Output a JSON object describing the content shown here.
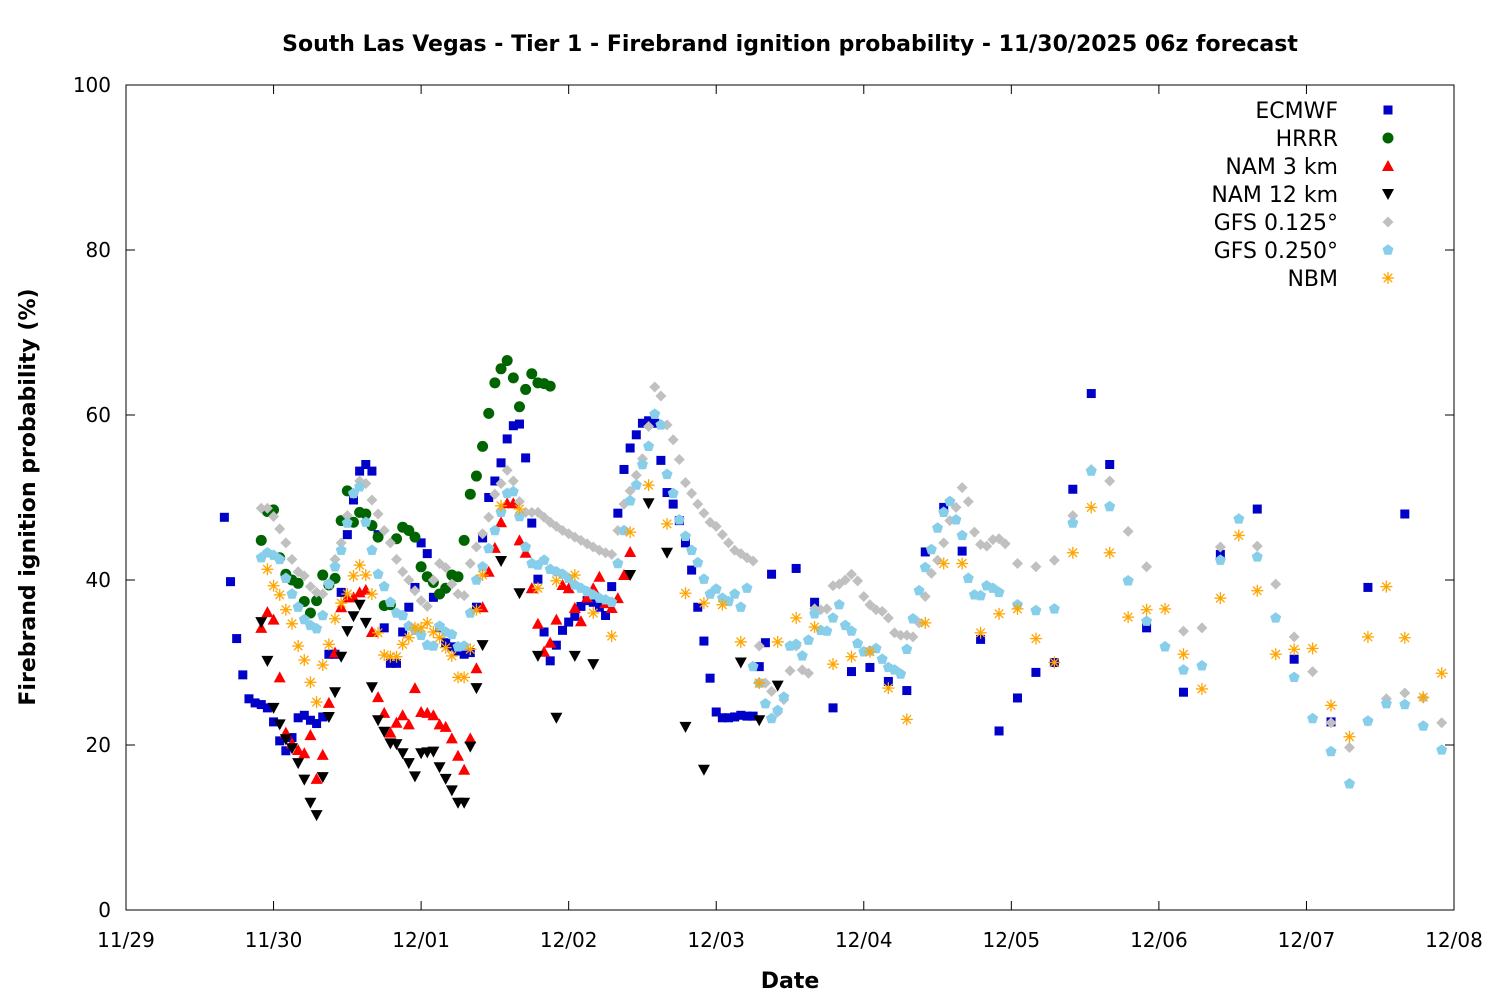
{
  "chart_data": {
    "type": "scatter",
    "title": "South Las Vegas - Tier 1 - Firebrand ignition probability - 11/30/2025 06z forecast",
    "xlabel": "Date",
    "ylabel": "Firebrand ignition probability (%)",
    "x_units": "hours since 11/29 00:00",
    "xlim": [
      0,
      216
    ],
    "ylim": [
      0,
      100
    ],
    "x_ticks": [
      {
        "value": 0,
        "label": "11/29"
      },
      {
        "value": 24,
        "label": "11/30"
      },
      {
        "value": 48,
        "label": "12/01"
      },
      {
        "value": 72,
        "label": "12/02"
      },
      {
        "value": 96,
        "label": "12/03"
      },
      {
        "value": 120,
        "label": "12/04"
      },
      {
        "value": 144,
        "label": "12/05"
      },
      {
        "value": 168,
        "label": "12/06"
      },
      {
        "value": 192,
        "label": "12/07"
      },
      {
        "value": 216,
        "label": "12/08"
      }
    ],
    "y_ticks": [
      {
        "value": 0,
        "label": "0"
      },
      {
        "value": 20,
        "label": "20"
      },
      {
        "value": 40,
        "label": "40"
      },
      {
        "value": 60,
        "label": "60"
      },
      {
        "value": 80,
        "label": "80"
      },
      {
        "value": 100,
        "label": "100"
      }
    ],
    "grid": false,
    "legend_position": "top-right",
    "series": [
      {
        "name": "ECMWF",
        "color": "#0000c8",
        "marker": "square",
        "segments": [
          {
            "start": 16,
            "step": 1,
            "values": [
              47.6,
              39.8,
              32.9,
              28.5,
              25.6,
              25.1,
              24.9,
              24.5,
              22.8,
              20.5,
              19.3,
              20.9,
              23.3,
              23.6,
              23.0,
              22.6,
              23.4,
              31,
              31,
              38.5,
              45.5,
              49.7,
              53.2,
              54,
              53.2,
              45.5,
              34.2,
              29.9,
              29.9,
              33.7,
              36.7,
              39.1,
              44.5,
              43.2,
              37.9,
              34.2,
              32.4,
              31.9,
              31.4,
              31.0,
              31.2,
              36.7,
              45.1,
              50,
              52,
              54.2,
              57.1,
              58.7,
              58.9,
              54.8,
              46.9,
              40.1,
              33.7,
              30.2,
              32.1,
              33.9,
              34.9,
              35.6,
              36.8,
              37.5,
              37.3,
              36.7,
              35.7,
              39.2,
              48.1,
              53.4,
              56,
              57.6,
              59,
              59.3,
              59,
              54.5,
              50.6,
              49.2,
              47.2,
              44.5,
              41.2,
              36.7,
              32.6,
              28.1,
              24,
              23.3,
              23.3,
              23.4,
              23.6,
              23.5,
              23.5,
              29.5,
              32.4,
              40.7
            ]
          },
          {
            "start": 109,
            "step": 3,
            "values": [
              41.4,
              37.3,
              24.5,
              28.9,
              29.4,
              27.7,
              26.6,
              43.4,
              48.8,
              43.5,
              32.8,
              21.7,
              25.7,
              28.8,
              30.0,
              51.0,
              62.6,
              54.0
            ]
          },
          {
            "start": 166,
            "step": 6,
            "values": [
              34.2,
              26.4,
              43.1,
              48.6,
              30.4,
              22.8,
              39.1,
              48.0
            ]
          }
        ]
      },
      {
        "name": "HRRR",
        "color": "#006400",
        "marker": "circle",
        "segments": [
          {
            "start": 22,
            "step": 1,
            "values": [
              44.8,
              48.3,
              48.5,
              42.7,
              40.7,
              40,
              39.6,
              37.4,
              36,
              37.5,
              40.6,
              39.4,
              40.2,
              47.2,
              50.8,
              47,
              48.2,
              48,
              46.6,
              45.2,
              36.9,
              37,
              45,
              46.4,
              46,
              45.2,
              41.6,
              40.4,
              39.7,
              38.3,
              39,
              40.6,
              40.4,
              44.8,
              50.4,
              52.6,
              56.2,
              60.2,
              63.9,
              65.6,
              66.6,
              64.5,
              61,
              63.1,
              65,
              63.9,
              63.8,
              63.5
            ]
          }
        ]
      },
      {
        "name": "NAM 3 km",
        "color": "#ff0000",
        "marker": "triangle-up",
        "segments": [
          {
            "start": 22,
            "step": 1,
            "values": [
              34.2,
              36.1,
              35.2,
              28.2,
              21.5,
              20.2,
              19.4,
              19,
              21.2,
              15.9,
              18.8,
              25.1,
              31.2,
              36.7,
              37.9,
              37.9,
              38.5,
              38.8,
              33.7,
              25.8,
              23.9,
              21.5,
              22.7,
              23.6,
              22.5,
              26.9,
              24,
              23.9,
              23.6,
              22.5,
              22.2,
              20.8,
              18.7,
              17,
              20.8,
              29.3,
              36.7,
              41,
              43.9,
              47,
              49.3,
              49.3,
              44.8,
              43.3,
              39,
              34.7,
              31.3,
              32.4,
              35.2,
              39.4,
              39,
              36.6,
              35,
              37.9,
              39,
              40.4,
              37.2,
              36.6,
              37.8,
              40.6,
              43.4
            ]
          }
        ]
      },
      {
        "name": "NAM 12 km",
        "color": "#000000",
        "marker": "triangle-down",
        "segments": [
          {
            "start": 22,
            "step": 1,
            "values": [
              34.9,
              30.2,
              24.5,
              22.5,
              20.7,
              19.6,
              17.8,
              15.8,
              13,
              11.5,
              16.1,
              23.4,
              26.4,
              30.7,
              33.8,
              35.6,
              37,
              34.8,
              27,
              23,
              21.6,
              20.2,
              20.1,
              19,
              17.8,
              16.2,
              19,
              19.1,
              19.2,
              17.3,
              15.9,
              14.5,
              13,
              13,
              19.8,
              26.9,
              32.1
            ]
          },
          {
            "start": 61,
            "step": 3,
            "values": [
              42.3,
              38.4,
              30.8,
              23.3,
              30.8,
              29.8
            ]
          },
          {
            "start": 82,
            "step": 3,
            "values": [
              40.6,
              49.3,
              43.3,
              22.2,
              17
            ]
          },
          {
            "start": 100,
            "step": 3,
            "values": [
              30,
              23,
              27.2
            ]
          }
        ]
      },
      {
        "name": "GFS 0.125°",
        "color": "#c0c0c0",
        "marker": "diamond",
        "segments": [
          {
            "start": 22,
            "step": 1,
            "values": [
              48.7,
              48.7,
              47.7,
              46.2,
              44.5,
              42.5,
              41,
              40.5,
              39.2,
              38.5,
              38.3,
              39.5,
              42.5,
              44.5,
              47.8,
              50.5,
              52,
              51.7,
              49.7,
              48,
              46,
              44.5,
              42.5,
              41,
              40,
              38.7,
              37.5,
              36.8,
              40,
              42,
              41.5,
              39.5,
              38.3,
              38.1,
              42,
              44,
              45.6,
              47.6,
              50.4,
              51.7,
              53.3,
              52,
              49.5,
              48.2,
              48.2,
              48.2,
              47.6,
              47,
              46.5,
              46,
              45.6,
              45.2,
              44.8,
              44.4,
              44,
              43.6,
              43.3,
              43.1,
              46,
              49.2,
              50.8,
              52.7,
              54.7,
              58.6,
              63.4,
              62.3,
              58.8,
              57,
              54.6,
              51.8,
              50.5,
              49.2,
              48.1,
              47,
              46.5,
              45.5,
              44.5,
              43.6,
              43.2,
              42.7,
              42.3,
              32,
              27.5,
              26.5,
              24,
              25.5,
              29,
              32,
              29.1,
              28.7,
              36.5,
              36.4,
              36.5,
              39.3,
              39.5,
              40,
              40.7,
              39.9,
              38,
              37,
              36.4,
              36.2,
              35.4,
              33.6,
              33.3,
              33.3,
              33.1,
              34.8,
              38,
              40.8,
              42.4,
              44.5,
              47.2,
              48.8,
              51.2,
              49.5,
              45.8,
              44.3,
              44.1,
              44.9,
              45,
              44.4
            ]
          },
          {
            "start": 145,
            "step": 3,
            "values": [
              42,
              41.6,
              42.4,
              47.8,
              53.4,
              52,
              45.9,
              41.6
            ]
          },
          {
            "start": 172,
            "step": 3,
            "values": [
              33.8,
              34.2,
              44
            ]
          },
          {
            "start": 184,
            "step": 3,
            "values": [
              44.1,
              39.5,
              33.1,
              28.9,
              22.7,
              19.7,
              22.9,
              25.6,
              26.3,
              25.7,
              22.7
            ]
          }
        ]
      },
      {
        "name": "GFS 0.250°",
        "color": "#87ceeb",
        "marker": "pentagon",
        "segments": [
          {
            "start": 22,
            "step": 1,
            "values": [
              42.7,
              43.3,
              43,
              42.5,
              40.2,
              38.3,
              36.7,
              35.2,
              34.5,
              34.1,
              35.7,
              39.5,
              41.6,
              43.6,
              46.9,
              50.5,
              51.3,
              47,
              43.6,
              40.7,
              39.2,
              37.3,
              36,
              35.7,
              34.4,
              33.9,
              33.3,
              32.1,
              32,
              34.4,
              33.7,
              33.4,
              31.9,
              32,
              36,
              40,
              41.6,
              43.8,
              46,
              48.2,
              50.5,
              50.7,
              47.7,
              44,
              42,
              41.8,
              42.4,
              41.3,
              41,
              40.7,
              40.2,
              39.4,
              39,
              38.6,
              38.2,
              37.8,
              37.6,
              37.3,
              42,
              46,
              49.6,
              51.5,
              54,
              56.2,
              60.1,
              58.8,
              52.8,
              50.5,
              47.3,
              45.3,
              43.6,
              42.1,
              40.1,
              38.3,
              38.9,
              37.8,
              37.4,
              38.3,
              36.7,
              39,
              29.5,
              27.5,
              25,
              23.2,
              24.2,
              25.8,
              32,
              32.2,
              30.8,
              32.7,
              35.9,
              33.9,
              33.8,
              35.4,
              37,
              34.5,
              33.8,
              32.3,
              31.3,
              31.4,
              31.7,
              30.4,
              29.4,
              29.1,
              28.6,
              31.6,
              35.3,
              38.7,
              41.5,
              43.7,
              46.3,
              48.2,
              49.5,
              47.3,
              45.4,
              40.2,
              38.2,
              38.1,
              39.3,
              39,
              38.5
            ]
          },
          {
            "start": 145,
            "step": 3,
            "values": [
              37,
              36.3,
              36.5,
              46.9,
              53.2,
              48.9,
              39.9,
              35,
              31.9,
              29.1,
              29.6,
              42.4,
              47.4,
              42.8,
              35.4,
              28.2,
              23.2,
              19.2,
              15.3,
              22.9,
              25,
              24.9,
              22.3,
              19.4
            ]
          }
        ]
      },
      {
        "name": "NBM",
        "color": "#ffa500",
        "marker": "asterisk",
        "segments": [
          {
            "start": 23,
            "step": 1,
            "values": [
              41.3,
              39.3,
              38.2,
              36.4,
              34.7,
              32,
              30.3,
              27.6,
              25.2,
              29.7,
              32.2,
              35.3,
              37.2,
              38.3,
              40.5,
              41.8,
              40.6,
              38.3,
              33.6,
              30.9,
              30.7,
              30.7,
              32.2,
              33,
              34.2,
              34.2,
              34.8,
              33.7,
              33,
              31.8,
              30.8,
              28.2,
              28.2,
              31.6,
              36.4,
              40.6
            ]
          },
          {
            "start": 61,
            "step": 3,
            "values": [
              49.0,
              48.6,
              39,
              39.9,
              40.6,
              36,
              33.2,
              45.8,
              51.5,
              46.8,
              38.4,
              37.2,
              37,
              32.5,
              27.5,
              32.5,
              35.4,
              34.3,
              29.8,
              30.7,
              31.3,
              26.9,
              23.1,
              34.8,
              42,
              42,
              33.6,
              35.9,
              36.5,
              32.9,
              30,
              43.3,
              48.8,
              43.3,
              35.5,
              36.4,
              36.5,
              31,
              26.8,
              37.8,
              45.4,
              38.7,
              31,
              31.6,
              31.7,
              24.8,
              21,
              33.1,
              39.2,
              33,
              25.8,
              28.7
            ]
          }
        ]
      }
    ]
  }
}
